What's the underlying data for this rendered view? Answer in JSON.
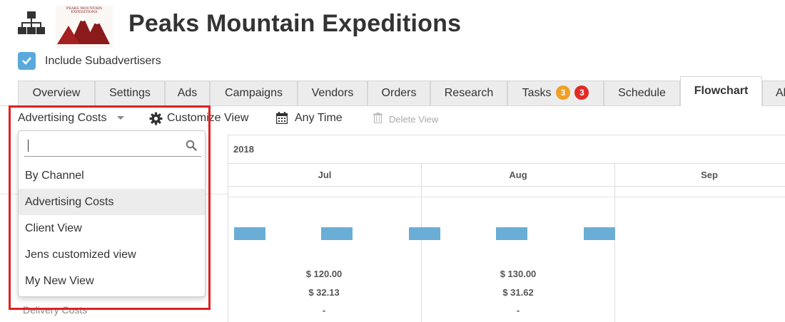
{
  "header": {
    "title": "Peaks Mountain Expeditions",
    "logo_text": "PEAKS MOUNTAIN EXPEDITIONS",
    "include_subadvertisers_label": "Include Subadvertisers",
    "include_subadvertisers_checked": true
  },
  "tabs": [
    {
      "label": "Overview"
    },
    {
      "label": "Settings"
    },
    {
      "label": "Ads"
    },
    {
      "label": "Campaigns"
    },
    {
      "label": "Vendors"
    },
    {
      "label": "Orders"
    },
    {
      "label": "Research"
    },
    {
      "label": "Tasks",
      "badges": [
        "3",
        "3"
      ]
    },
    {
      "label": "Schedule"
    },
    {
      "label": "Flowchart",
      "active": true
    },
    {
      "label": "Al"
    }
  ],
  "toolbar": {
    "view_select": "Advertising Costs",
    "customize_view": "Customize View",
    "time_range": "Any Time",
    "delete_view": "Delete View"
  },
  "dropdown": {
    "search_value": "",
    "options": [
      "By Channel",
      "Advertising Costs",
      "Client View",
      "Jens customized view",
      "My New View"
    ],
    "selected": "Advertising Costs"
  },
  "flowchart": {
    "year": "2018",
    "months": [
      "Jul",
      "Aug",
      "Sep"
    ],
    "left_row_label": "Delivery Costs",
    "columns": [
      {
        "month": "Jul",
        "values": [
          "$ 120.00",
          "$ 32.13",
          "-"
        ]
      },
      {
        "month": "Aug",
        "values": [
          "$ 130.00",
          "$ 31.62",
          "-"
        ]
      }
    ]
  },
  "colors": {
    "accent": "#5aa9dc",
    "bar": "#6aaed6",
    "badge_orange": "#f0a025",
    "badge_red": "#e02b27",
    "highlight": "#e0201f"
  }
}
